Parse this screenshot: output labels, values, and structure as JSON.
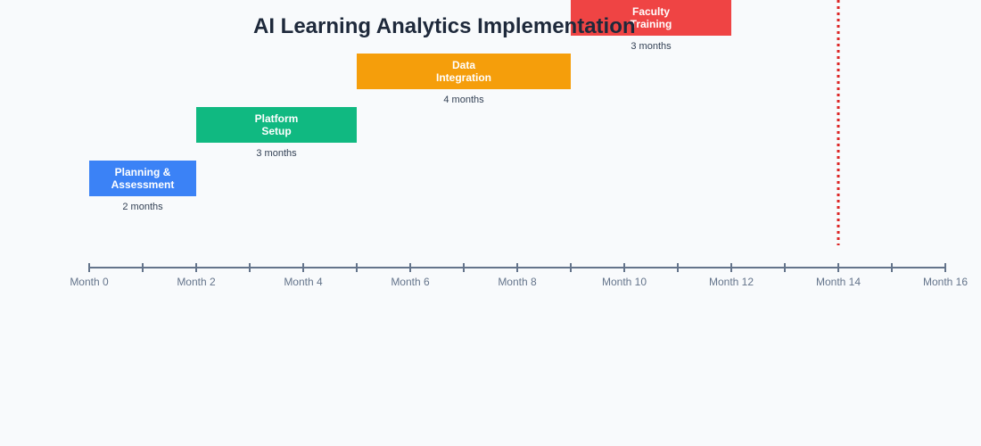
{
  "chart_data": {
    "type": "gantt",
    "title": "AI Learning Analytics Implementation",
    "x_unit": "month",
    "xlim": [
      0,
      16
    ],
    "ticks": [
      0,
      2,
      4,
      6,
      8,
      10,
      12,
      14,
      16
    ],
    "tick_labels": [
      "Month 0",
      "Month 2",
      "Month 4",
      "Month 6",
      "Month 8",
      "Month 10",
      "Month 12",
      "Month 14",
      "Month 16"
    ],
    "tasks": [
      {
        "name_lines": [
          "Planning &",
          "Assessment"
        ],
        "start": 0,
        "end": 2,
        "duration_label": "2 months",
        "color": "#3b82f6"
      },
      {
        "name_lines": [
          "Platform",
          "Setup"
        ],
        "start": 2,
        "end": 5,
        "duration_label": "3 months",
        "color": "#10b981"
      },
      {
        "name_lines": [
          "Data",
          "Integration"
        ],
        "start": 5,
        "end": 9,
        "duration_label": "4 months",
        "color": "#f59e0b"
      },
      {
        "name_lines": [
          "Faculty",
          "Training"
        ],
        "start": 9,
        "end": 12,
        "duration_label": "3 months",
        "color": "#ef4444"
      }
    ],
    "marker_line": {
      "month": 14,
      "color": "#dc2626",
      "style": "dotted"
    },
    "axis_color": "#64748b"
  }
}
